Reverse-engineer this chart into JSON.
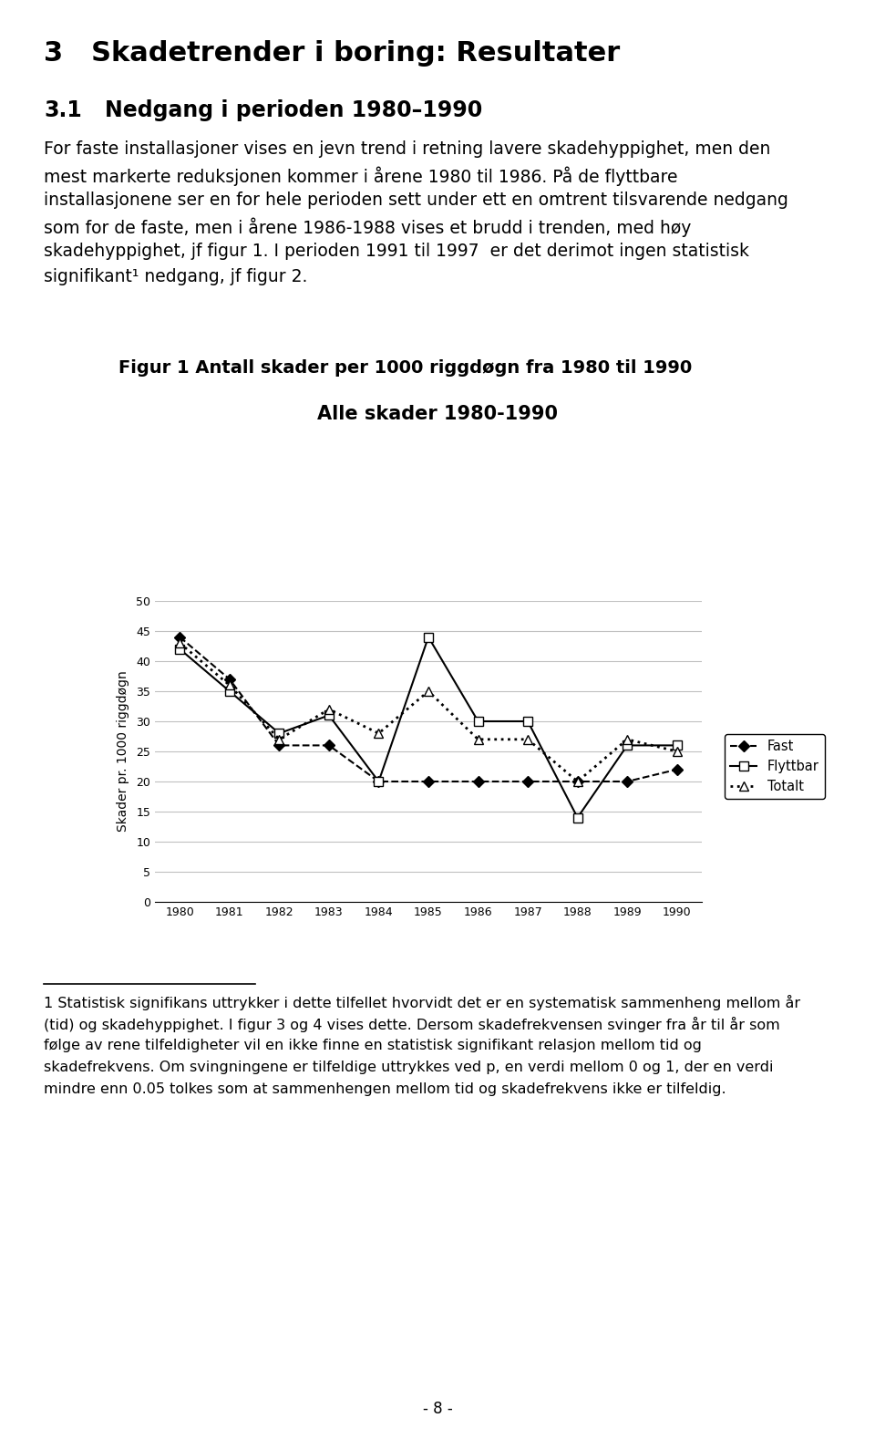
{
  "years": [
    1980,
    1981,
    1982,
    1983,
    1984,
    1985,
    1986,
    1987,
    1988,
    1989,
    1990
  ],
  "fast": [
    44,
    37,
    26,
    26,
    20,
    20,
    20,
    20,
    20,
    20,
    22
  ],
  "flyttbar": [
    42,
    35,
    28,
    31,
    20,
    44,
    30,
    30,
    14,
    26,
    26
  ],
  "totalt": [
    43,
    36,
    27,
    32,
    28,
    35,
    27,
    27,
    20,
    27,
    25
  ],
  "chart_title": "Alle skader 1980-1990",
  "fig_title": "Figur 1 Antall skader per 1000 riggdøgn fra 1980 til 1990",
  "ylabel": "Skader pr. 1000 riggdøgn",
  "ylim": [
    0,
    50
  ],
  "yticks": [
    0,
    5,
    10,
    15,
    20,
    25,
    30,
    35,
    40,
    45,
    50
  ],
  "legend_fast": "Fast",
  "legend_flyttbar": "Flyttbar",
  "legend_totalt": "Totalt",
  "page_number": "- 8 -",
  "background_color": "#ffffff"
}
